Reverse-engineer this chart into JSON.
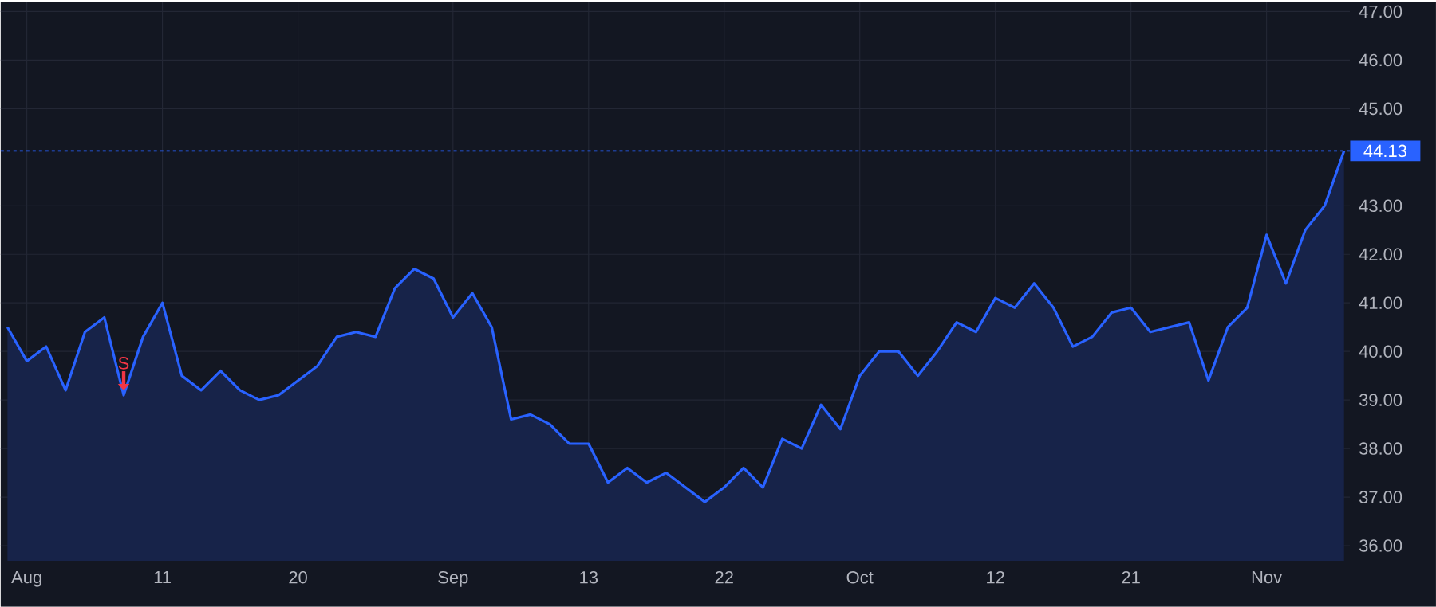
{
  "chart_data": {
    "type": "area",
    "categories": [
      null,
      "Aug",
      null,
      null,
      null,
      null,
      null,
      null,
      "11",
      null,
      null,
      null,
      null,
      null,
      null,
      "20",
      null,
      null,
      null,
      null,
      null,
      null,
      null,
      "Sep",
      null,
      null,
      null,
      null,
      null,
      null,
      "13",
      null,
      null,
      null,
      null,
      null,
      null,
      "22",
      null,
      null,
      null,
      null,
      null,
      null,
      "Oct",
      null,
      null,
      null,
      null,
      null,
      null,
      "12",
      null,
      null,
      null,
      null,
      null,
      null,
      "21",
      null,
      null,
      null,
      null,
      null,
      null,
      "Nov",
      null,
      null,
      null,
      null
    ],
    "series": [
      {
        "color": "#2962ff",
        "values": [
          40.5,
          39.8,
          40.1,
          39.2,
          40.4,
          40.7,
          39.1,
          40.3,
          41.0,
          39.5,
          39.2,
          39.6,
          39.2,
          39.0,
          39.1,
          39.4,
          39.7,
          40.3,
          40.4,
          40.3,
          41.3,
          41.7,
          41.5,
          40.7,
          41.2,
          40.5,
          38.6,
          38.7,
          38.5,
          38.1,
          38.1,
          37.3,
          37.6,
          37.3,
          37.5,
          37.2,
          36.9,
          37.2,
          37.6,
          37.2,
          38.2,
          38.0,
          38.9,
          38.4,
          39.5,
          40.0,
          40.0,
          39.5,
          40.0,
          40.6,
          40.4,
          41.1,
          40.9,
          41.4,
          40.9,
          40.1,
          40.3,
          40.8,
          40.9,
          40.4,
          40.5,
          40.6,
          39.4,
          40.5,
          40.9,
          42.4,
          41.4,
          42.5,
          43.0,
          44.13
        ]
      }
    ],
    "ylim": [
      35.69,
      47.2
    ],
    "yticks": [
      {
        "value": 36,
        "label": "36.00"
      },
      {
        "value": 37,
        "label": "37.00"
      },
      {
        "value": 38,
        "label": "38.00"
      },
      {
        "value": 39,
        "label": "39.00"
      },
      {
        "value": 40,
        "label": "40.00"
      },
      {
        "value": 41,
        "label": "41.00"
      },
      {
        "value": 42,
        "label": "42.00"
      },
      {
        "value": 43,
        "label": "43.00"
      },
      {
        "value": 45,
        "label": "45.00"
      },
      {
        "value": 46,
        "label": "46.00"
      },
      {
        "value": 47,
        "label": "47.00"
      }
    ],
    "ref_lines": [
      {
        "axis": "y",
        "value": 44.13,
        "label": "44.13",
        "color": "#2962ff",
        "line_style": "dotted"
      }
    ],
    "annotations": [
      {
        "text": "S",
        "y": 39.1
      }
    ],
    "grid": true,
    "marker": "none",
    "line_style": "solid"
  }
}
